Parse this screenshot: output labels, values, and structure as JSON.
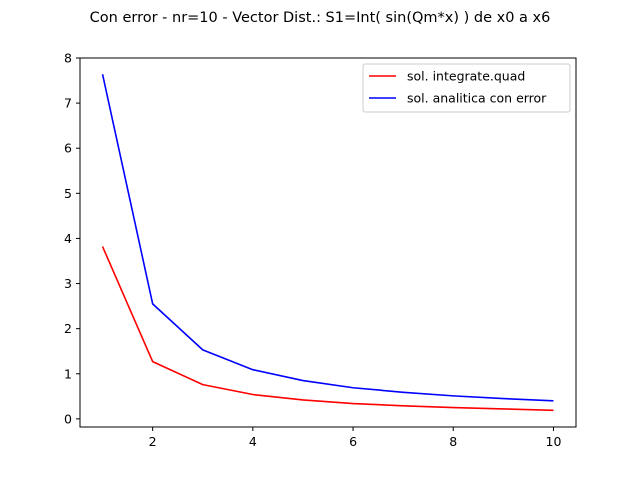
{
  "chart_data": {
    "type": "line",
    "title": "Con error - nr=10 - Vector Dist.: S1=Int( sin(Qm*x) ) de x0 a x6",
    "xlabel": "",
    "ylabel": "",
    "xlim": [
      0.55,
      10.45
    ],
    "ylim": [
      -0.18,
      8.0
    ],
    "xticks": [
      2,
      4,
      6,
      8,
      10
    ],
    "yticks": [
      0,
      1,
      2,
      3,
      4,
      5,
      6,
      7,
      8
    ],
    "grid": false,
    "legend_position": "upper right",
    "x": [
      1,
      2,
      3,
      4,
      5,
      6,
      7,
      8,
      9,
      10
    ],
    "series": [
      {
        "name": "sol. integrate.quad",
        "color": "#ff0000",
        "values": [
          3.82,
          1.27,
          0.76,
          0.54,
          0.42,
          0.34,
          0.29,
          0.25,
          0.22,
          0.19
        ]
      },
      {
        "name": "sol. analitica con error",
        "color": "#0000ff",
        "values": [
          7.64,
          2.55,
          1.53,
          1.09,
          0.85,
          0.69,
          0.59,
          0.51,
          0.45,
          0.4
        ]
      }
    ]
  }
}
